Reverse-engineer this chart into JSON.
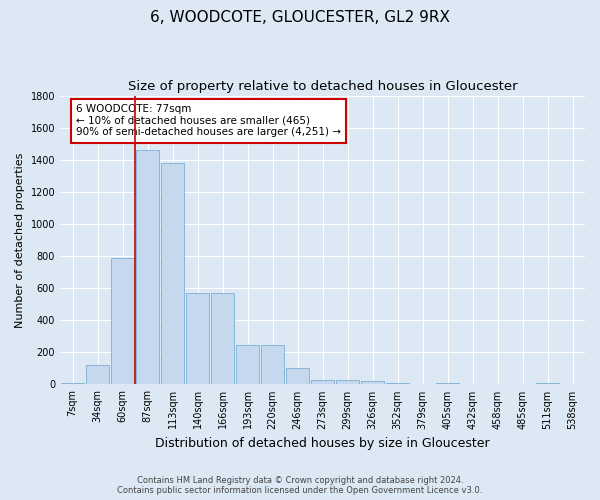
{
  "title": "6, WOODCOTE, GLOUCESTER, GL2 9RX",
  "subtitle": "Size of property relative to detached houses in Gloucester",
  "xlabel": "Distribution of detached houses by size in Gloucester",
  "ylabel": "Number of detached properties",
  "footer_line1": "Contains HM Land Registry data © Crown copyright and database right 2024.",
  "footer_line2": "Contains public sector information licensed under the Open Government Licence v3.0.",
  "categories": [
    "7sqm",
    "34sqm",
    "60sqm",
    "87sqm",
    "113sqm",
    "140sqm",
    "166sqm",
    "193sqm",
    "220sqm",
    "246sqm",
    "273sqm",
    "299sqm",
    "326sqm",
    "352sqm",
    "379sqm",
    "405sqm",
    "432sqm",
    "458sqm",
    "485sqm",
    "511sqm",
    "538sqm"
  ],
  "values": [
    10,
    120,
    790,
    1460,
    1380,
    570,
    570,
    245,
    245,
    100,
    30,
    25,
    20,
    10,
    0,
    10,
    0,
    0,
    0,
    10,
    0
  ],
  "bar_color": "#c5d8ee",
  "bar_edge_color": "#7bafd4",
  "vline_x": 2.5,
  "vline_color": "#cc0000",
  "annotation_text": "6 WOODCOTE: 77sqm\n← 10% of detached houses are smaller (465)\n90% of semi-detached houses are larger (4,251) →",
  "annotation_box_color": "#ffffff",
  "annotation_box_edge": "#cc0000",
  "ylim": [
    0,
    1800
  ],
  "yticks": [
    0,
    200,
    400,
    600,
    800,
    1000,
    1200,
    1400,
    1600,
    1800
  ],
  "background_color": "#dce9f5",
  "plot_bg_color": "#dce9f5",
  "grid_color": "#ffffff",
  "title_fontsize": 11,
  "subtitle_fontsize": 9.5,
  "xlabel_fontsize": 9,
  "ylabel_fontsize": 8,
  "tick_fontsize": 7
}
